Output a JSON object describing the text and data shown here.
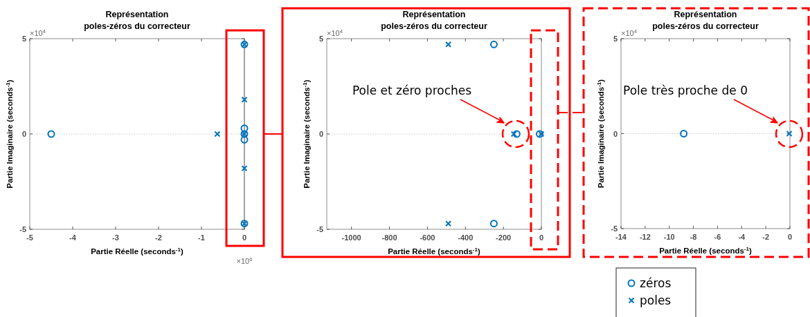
{
  "chart_data": [
    {
      "type": "scatter",
      "title": "Représentation\npoles-zéros du correcteur",
      "xlabel": "Partie Réelle (seconds$^{-1}$)",
      "ylabel": "Partie Imaginaire (seconds$^{-1}$)",
      "xlim": [
        -5,
        0
      ],
      "xticks": [
        -5,
        -4,
        -3,
        -2,
        -1,
        0
      ],
      "ylim": [
        -5,
        5
      ],
      "yticks": [
        -5,
        0,
        5
      ],
      "grid": false,
      "annotations": [
        "×10$^{4}$",
        "×10$^{6}$"
      ],
      "ref_lines": [
        {
          "axis": "y",
          "value": 0,
          "line_style": "dotted",
          "color": "#c8c8c8"
        },
        {
          "axis": "x",
          "value": 0,
          "line_style": "solid",
          "color": "#808080"
        }
      ],
      "series": [
        {
          "color": "#0072bd",
          "marker": "circle",
          "x": [
            -4.5,
            0,
            0,
            0,
            0,
            0
          ],
          "values": [
            0,
            4.7,
            -4.7,
            0.3,
            -0.3,
            0
          ]
        },
        {
          "color": "#0072bd",
          "marker": "cross",
          "x": [
            -0.63,
            0,
            0,
            0,
            0,
            0
          ],
          "values": [
            0,
            4.7,
            -4.7,
            1.8,
            -1.8,
            0
          ]
        }
      ]
    },
    {
      "type": "scatter",
      "title": "Représentation\npoles-zéros du correcteur",
      "xlabel": "Partie Réelle (seconds$^{-1}$)",
      "ylabel": "Partie Imaginaire (seconds$^{-1}$)",
      "xlim": [
        -1130,
        0
      ],
      "xticks": [
        -1000,
        -800,
        -600,
        -400,
        -200,
        0
      ],
      "ylim": [
        -5,
        5
      ],
      "yticks": [
        -5,
        0,
        5
      ],
      "grid": false,
      "annotations": [
        "×10$^{4}$",
        "Pole et zéro proches"
      ],
      "ref_lines": [
        {
          "axis": "y",
          "value": 0,
          "line_style": "dotted",
          "color": "#c8c8c8"
        }
      ],
      "series": [
        {
          "color": "#0072bd",
          "marker": "circle",
          "x": [
            -250,
            -250,
            -130,
            -9
          ],
          "values": [
            4.7,
            -4.7,
            0,
            0
          ]
        },
        {
          "color": "#0072bd",
          "marker": "cross",
          "x": [
            -490,
            -490,
            -145,
            -0.1
          ],
          "values": [
            4.7,
            -4.7,
            0,
            0
          ]
        }
      ]
    },
    {
      "type": "scatter",
      "title": "Représentation\npoles-zéros du correcteur",
      "xlabel": "Partie Réelle (seconds$^{-1}$)",
      "ylabel": "Partie Imaginaire (seconds$^{-1}$)",
      "xlim": [
        -14,
        0
      ],
      "xticks": [
        -14,
        -12,
        -10,
        -8,
        -6,
        -4,
        -2,
        0
      ],
      "ylim": [
        -5,
        5
      ],
      "yticks": [
        -5,
        0,
        5
      ],
      "grid": false,
      "legend": "bottom",
      "annotations": [
        "×10$^{4}$",
        "Pole très proche de 0"
      ],
      "ref_lines": [
        {
          "axis": "y",
          "value": 0,
          "line_style": "dotted",
          "color": "#c8c8c8"
        }
      ],
      "series": [
        {
          "name": "zéros",
          "color": "#0072bd",
          "marker": "circle",
          "x": [
            -8.8
          ],
          "values": [
            0
          ]
        },
        {
          "name": "poles",
          "color": "#0072bd",
          "marker": "cross",
          "x": [
            -0.05
          ],
          "values": [
            0
          ]
        }
      ]
    }
  ]
}
